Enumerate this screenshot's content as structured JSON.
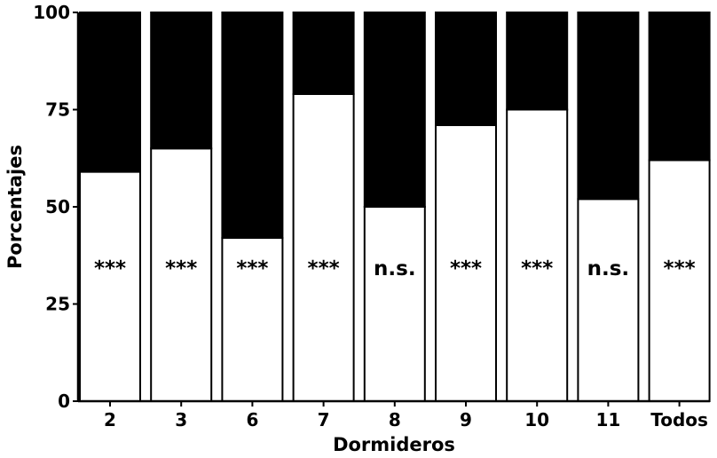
{
  "chart_data": {
    "type": "bar",
    "stacked": true,
    "title": "",
    "xlabel": "Dormideros",
    "ylabel": "Porcentajes",
    "ylim": [
      0,
      100
    ],
    "yticks": [
      0,
      25,
      50,
      75,
      100
    ],
    "categories": [
      "2",
      "3",
      "6",
      "7",
      "8",
      "9",
      "10",
      "11",
      "Todos"
    ],
    "series": [
      {
        "values": [
          59,
          65,
          42,
          79,
          50,
          71,
          75,
          52,
          62
        ],
        "color": "#ffffff"
      },
      {
        "values": [
          41,
          35,
          58,
          21,
          50,
          29,
          25,
          48,
          38
        ],
        "color": "#000000"
      }
    ],
    "annotations": [
      "***",
      "***",
      "***",
      "***",
      "n.s.",
      "***",
      "***",
      "n.s.",
      "***"
    ],
    "grid": false,
    "legend": "none"
  }
}
